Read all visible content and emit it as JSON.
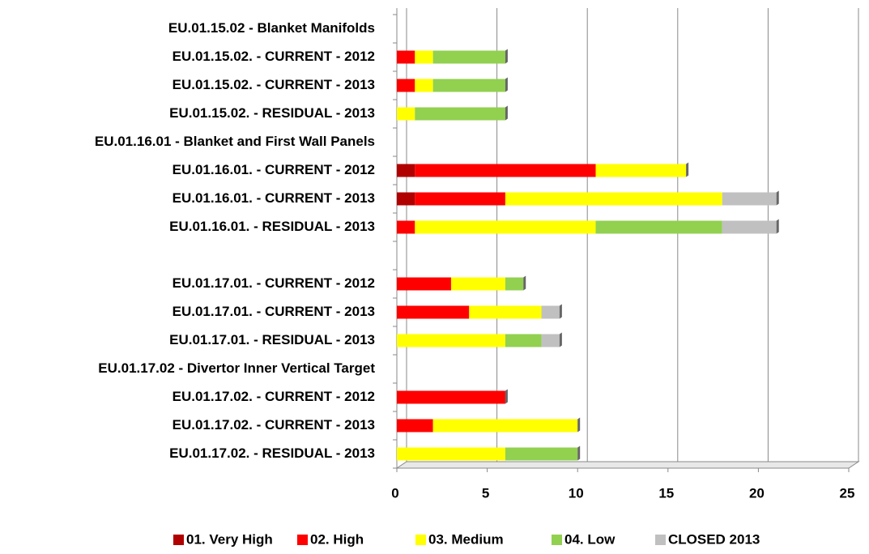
{
  "chart_data": {
    "type": "stacked-barh",
    "categories": [
      "EU.01.15.02 - Blanket Manifolds",
      "EU.01.15.02. - CURRENT - 2012",
      "EU.01.15.02. - CURRENT - 2013",
      "EU.01.15.02. - RESIDUAL - 2013",
      "EU.01.16.01 - Blanket and First Wall Panels",
      "EU.01.16.01. - CURRENT - 2012",
      "EU.01.16.01. - CURRENT - 2013",
      "EU.01.16.01. - RESIDUAL - 2013",
      null,
      "EU.01.17.01. - CURRENT - 2012",
      "EU.01.17.01. - CURRENT - 2013",
      "EU.01.17.01. - RESIDUAL - 2013",
      "EU.01.17.02 - Divertor Inner Vertical Target",
      "EU.01.17.02. - CURRENT - 2012",
      "EU.01.17.02. - CURRENT - 2013",
      "EU.01.17.02. - RESIDUAL - 2013"
    ],
    "series": [
      {
        "name": "01. Very High",
        "color": "#b00000",
        "values": [
          0,
          0,
          0,
          0,
          0,
          1,
          1,
          0,
          0,
          0,
          0,
          0,
          0,
          0,
          0,
          0
        ]
      },
      {
        "name": "02. High",
        "color": "#ff0000",
        "values": [
          0,
          1,
          1,
          0,
          0,
          10,
          5,
          1,
          0,
          3,
          4,
          0,
          0,
          6,
          2,
          0
        ]
      },
      {
        "name": "03. Medium",
        "color": "#ffff00",
        "values": [
          0,
          1,
          1,
          1,
          0,
          5,
          12,
          10,
          0,
          3,
          4,
          6,
          0,
          0,
          8,
          6
        ]
      },
      {
        "name": "04. Low",
        "color": "#92d050",
        "values": [
          0,
          4,
          4,
          5,
          0,
          0,
          0,
          7,
          0,
          1,
          0,
          2,
          0,
          0,
          0,
          4
        ]
      },
      {
        "name": "CLOSED 2013",
        "color": "#c0c0c0",
        "values": [
          0,
          0,
          0,
          0,
          0,
          0,
          3,
          3,
          0,
          0,
          1,
          1,
          0,
          0,
          0,
          0
        ]
      }
    ],
    "xlim": [
      0,
      25
    ],
    "xticks": [
      0,
      5,
      10,
      15,
      20,
      25
    ],
    "grid": true,
    "legend": "bottom"
  }
}
